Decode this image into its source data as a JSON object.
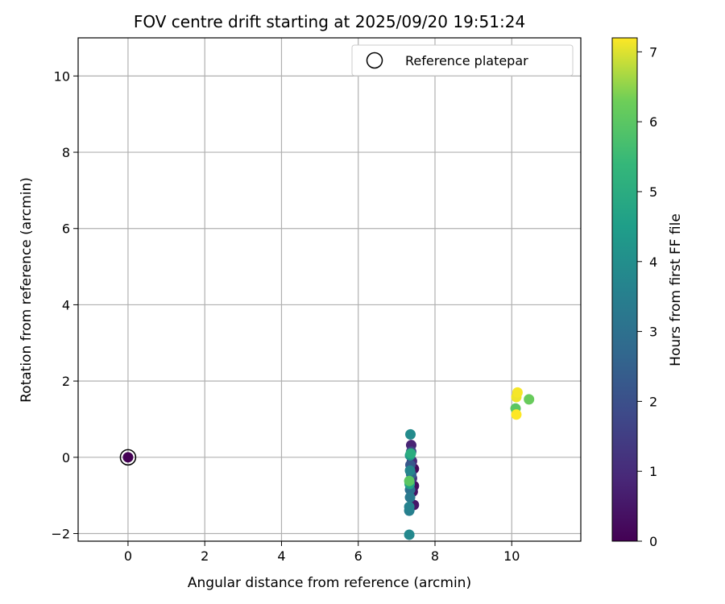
{
  "chart_data": {
    "type": "scatter",
    "title": "FOV centre drift starting at 2025/09/20 19:51:24",
    "xlabel": "Angular distance from reference (arcmin)",
    "ylabel": "Rotation from reference (arcmin)",
    "xlim": [
      -1.3,
      11.8
    ],
    "ylim": [
      -2.2,
      11.0
    ],
    "x_ticks": [
      0,
      2,
      4,
      6,
      8,
      10
    ],
    "y_ticks": [
      -2,
      0,
      2,
      4,
      6,
      8,
      10
    ],
    "grid": true,
    "legend": {
      "placement": "top-right",
      "entries": [
        "Reference platepar"
      ]
    },
    "colorbar": {
      "label": "Hours from first FF file",
      "colormap": "viridis",
      "range": [
        0,
        7.2
      ],
      "ticks": [
        0,
        1,
        2,
        3,
        4,
        5,
        6,
        7
      ]
    },
    "reference_point": {
      "x": 0,
      "y": 0
    },
    "points": [
      {
        "x": 0.0,
        "y": 0.0,
        "h": 0.0
      },
      {
        "x": 7.45,
        "y": -0.3,
        "h": 0.2
      },
      {
        "x": 7.45,
        "y": -0.75,
        "h": 0.3
      },
      {
        "x": 7.42,
        "y": -0.9,
        "h": 0.4
      },
      {
        "x": 7.45,
        "y": -1.25,
        "h": 0.5
      },
      {
        "x": 7.38,
        "y": 0.32,
        "h": 0.8
      },
      {
        "x": 7.4,
        "y": -0.1,
        "h": 1.0
      },
      {
        "x": 7.4,
        "y": -0.55,
        "h": 1.2
      },
      {
        "x": 7.38,
        "y": 0.15,
        "h": 1.6
      },
      {
        "x": 7.36,
        "y": -0.2,
        "h": 2.2
      },
      {
        "x": 7.38,
        "y": -0.45,
        "h": 2.6
      },
      {
        "x": 7.35,
        "y": -0.85,
        "h": 3.0
      },
      {
        "x": 7.35,
        "y": -1.05,
        "h": 3.3
      },
      {
        "x": 7.33,
        "y": -1.4,
        "h": 3.5
      },
      {
        "x": 7.33,
        "y": -1.3,
        "h": 3.6
      },
      {
        "x": 7.35,
        "y": -0.35,
        "h": 3.7
      },
      {
        "x": 7.36,
        "y": 0.6,
        "h": 3.9
      },
      {
        "x": 7.33,
        "y": -2.03,
        "h": 3.8
      },
      {
        "x": 7.35,
        "y": 0.05,
        "h": 4.3
      },
      {
        "x": 7.34,
        "y": -0.7,
        "h": 4.6
      },
      {
        "x": 7.37,
        "y": 0.1,
        "h": 5.0
      },
      {
        "x": 7.33,
        "y": -0.62,
        "h": 6.0
      },
      {
        "x": 10.1,
        "y": 1.28,
        "h": 6.0
      },
      {
        "x": 10.45,
        "y": 1.52,
        "h": 6.2
      },
      {
        "x": 10.12,
        "y": 1.58,
        "h": 7.1
      },
      {
        "x": 10.15,
        "y": 1.7,
        "h": 7.15
      },
      {
        "x": 10.12,
        "y": 1.12,
        "h": 7.2
      }
    ]
  }
}
